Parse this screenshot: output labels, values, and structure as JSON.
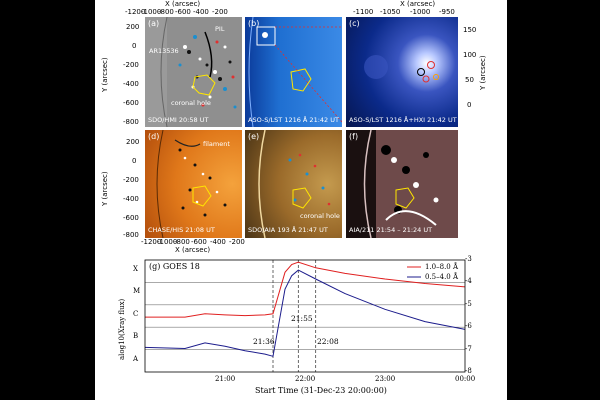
{
  "top_axis": {
    "label": "X (arcsec)",
    "ticks_left": [
      "-1200",
      "-1000",
      "-800",
      "-600",
      "-400",
      "-200"
    ],
    "ticks_right": [
      "-1100",
      "-1050",
      "-1000",
      "-950"
    ]
  },
  "bottom_axis": {
    "label": "X (arcsec)",
    "ticks": [
      "-1200",
      "-1000",
      "-800",
      "-600",
      "-400",
      "-200"
    ]
  },
  "y_axis": {
    "label": "Y (arcsec)",
    "ticks_top": [
      "200",
      "0",
      "-200",
      "-400",
      "-600",
      "-800"
    ],
    "ticks_bottom": [
      "200",
      "0",
      "-200",
      "-400",
      "-600",
      "-800"
    ],
    "ticks_c": [
      "150",
      "100",
      "50",
      "0"
    ]
  },
  "panels": {
    "a": {
      "letter": "(a)",
      "caption": "SDO/HMI  20:58 UT",
      "notes": [
        "AR13536",
        "PIL",
        "coronal hole"
      ],
      "color": "#8a8a8a"
    },
    "b": {
      "letter": "(b)",
      "caption": "ASO-S/LST 1216  Å  21:42 UT",
      "color": "#1f6fd1"
    },
    "c": {
      "letter": "(c)",
      "caption": "ASO-S/LST 1216 Å+HXI  21:42 UT",
      "color": "#0b2a8a"
    },
    "d": {
      "letter": "(d)",
      "caption": "CHASE/HIS  21:08 UT",
      "notes": [
        "filament"
      ],
      "color": "#e0781a"
    },
    "e": {
      "letter": "(e)",
      "caption": "SDO/AIA 193  Å  21:47 UT",
      "notes": [
        "coronal hole"
      ],
      "color": "#b07a2c"
    },
    "f": {
      "letter": "(f)",
      "caption": "AIA/211  21:54 – 21:24 UT",
      "color": "#6e4a4a"
    }
  },
  "goes": {
    "title": "(g)  GOES 18",
    "ylabel": "alog10(Xray flux)",
    "xlabel": "Start Time (31-Dec-23 20:00:00)",
    "right_classes": [
      "X",
      "M",
      "C",
      "B",
      "A"
    ],
    "left_ticks": [
      "-3",
      "-4",
      "-5",
      "-6",
      "-7",
      "-8"
    ],
    "x_ticks": [
      "21:00",
      "22:00",
      "23:00",
      "00:00"
    ],
    "markers": [
      "21:36",
      "21:55",
      "22:08"
    ],
    "colors": {
      "long": "#e02020",
      "short": "#1c1c8c"
    }
  },
  "chart_data": {
    "type": "line",
    "title": "(g)  GOES 18",
    "xlabel": "Start Time (31-Dec-23 20:00:00)",
    "ylabel": "alog10(Xray flux)",
    "x": [
      "20:00",
      "20:30",
      "20:45",
      "21:00",
      "21:15",
      "21:30",
      "21:36",
      "21:45",
      "21:50",
      "21:55",
      "22:08",
      "22:30",
      "23:00",
      "23:30",
      "00:00"
    ],
    "series": [
      {
        "name": "1.0–8.0 Å",
        "values": [
          -5.55,
          -5.55,
          -5.4,
          -5.45,
          -5.48,
          -5.45,
          -5.4,
          -3.55,
          -3.2,
          -3.1,
          -3.35,
          -3.6,
          -3.85,
          -4.05,
          -4.2
        ]
      },
      {
        "name": "0.5–4.0 Å",
        "values": [
          -6.9,
          -6.95,
          -6.7,
          -6.85,
          -7.05,
          -7.2,
          -7.3,
          -4.3,
          -3.7,
          -3.45,
          -3.85,
          -4.5,
          -5.2,
          -5.75,
          -6.1
        ]
      }
    ],
    "ylim": [
      -8,
      -3
    ],
    "annotations": [
      "21:36",
      "21:55",
      "22:08"
    ]
  }
}
